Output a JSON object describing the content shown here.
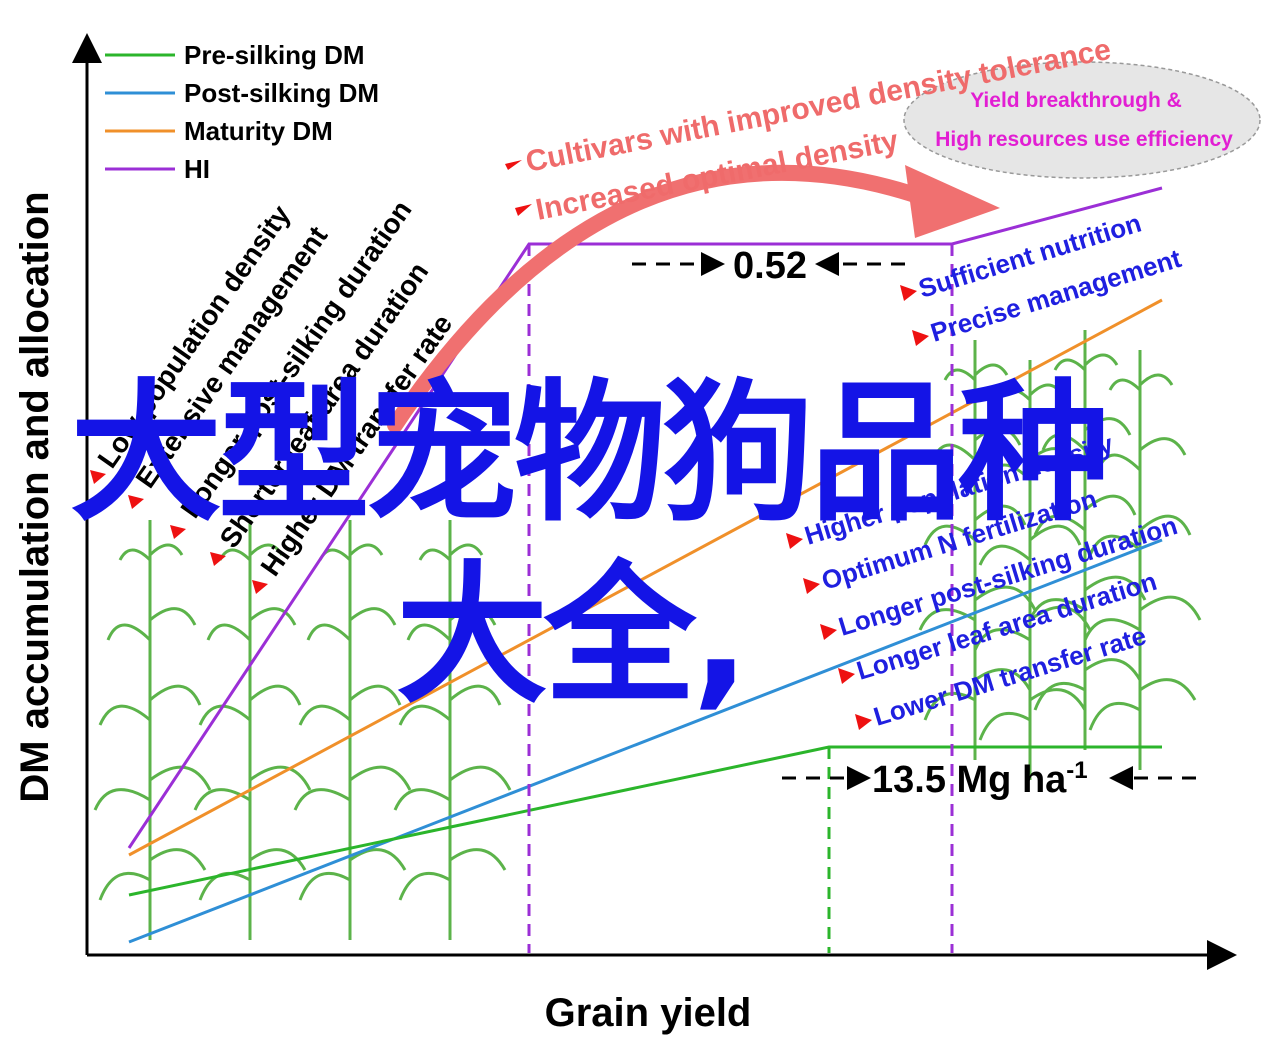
{
  "axes": {
    "ylabel": "DM accumulation and allocation",
    "xlabel": "Grain yield"
  },
  "legend": [
    {
      "label": "Pre-silking DM",
      "color": "#2bb52b"
    },
    {
      "label": "Post-silking DM",
      "color": "#2f8fd6"
    },
    {
      "label": "Maturity DM",
      "color": "#f0902a"
    },
    {
      "label": "HI",
      "color": "#9b2fd6"
    }
  ],
  "arrow_labels": {
    "top": "Cultivars with improved density tolerance",
    "bottom": "Increased optimal density"
  },
  "ellipse": {
    "line1": "Yield breakthrough &",
    "line2": "High resources use efficiency"
  },
  "left_factors": [
    "Low population density",
    "Extensive management",
    "Longer post-silking duration",
    "Shorter leaf area duration",
    "Higher DM transfer rate"
  ],
  "right_factors_top": [
    "Sufficient nutrition",
    "Precise management"
  ],
  "right_factors_bottom": [
    "Higher population density",
    "Optimum N fertilization",
    "Longer post-silking duration",
    "Longer leaf area duration",
    "Lower DM transfer rate"
  ],
  "annotations": {
    "hi_gap": "0.52",
    "yield_gap_value": "13.5 Mg ha",
    "yield_gap_sup": "-1"
  },
  "overlay": {
    "line1": "大型宠物狗品种",
    "line2": "大全,"
  },
  "colors": {
    "red_arrow": "#f07070",
    "blue_text": "#1f1fe0",
    "magenta_text": "#e21ed3",
    "overlay": "#1414e6"
  }
}
